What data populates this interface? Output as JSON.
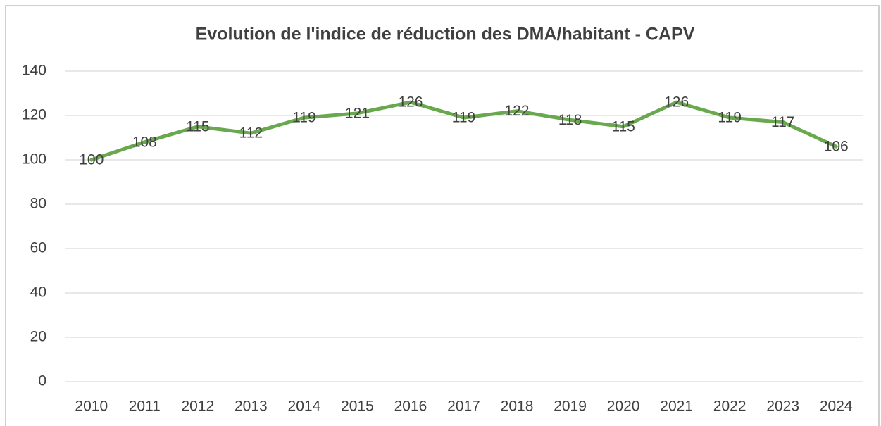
{
  "chart_data": {
    "type": "line",
    "title": "Evolution de l'indice de réduction des DMA/habitant - CAPV",
    "categories": [
      "2010",
      "2011",
      "2012",
      "2013",
      "2014",
      "2015",
      "2016",
      "2017",
      "2018",
      "2019",
      "2020",
      "2021",
      "2022",
      "2023",
      "2024"
    ],
    "values": [
      100,
      108,
      115,
      112,
      119,
      121,
      126,
      119,
      122,
      118,
      115,
      126,
      119,
      117,
      106
    ],
    "color": "#6aa84f",
    "ylim": [
      0,
      140
    ],
    "yticks": [
      0,
      20,
      40,
      60,
      80,
      100,
      120,
      140
    ],
    "grid": true,
    "data_labels": true
  }
}
